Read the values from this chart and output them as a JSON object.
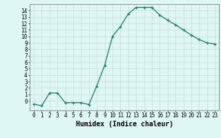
{
  "x": [
    0,
    1,
    2,
    3,
    4,
    5,
    6,
    7,
    8,
    9,
    10,
    11,
    12,
    13,
    14,
    15,
    16,
    17,
    18,
    19,
    20,
    21,
    22,
    23
  ],
  "y": [
    -0.5,
    -0.8,
    1.2,
    1.2,
    -0.3,
    -0.3,
    -0.3,
    -0.6,
    2.3,
    5.5,
    10.0,
    11.5,
    13.5,
    14.5,
    14.5,
    14.5,
    13.3,
    12.5,
    11.8,
    11.0,
    10.2,
    9.5,
    9.0,
    8.8
  ],
  "line_color": "#2e7d6e",
  "marker": "+",
  "markersize": 3,
  "markeredgewidth": 1.0,
  "linewidth": 1.0,
  "bg_color": "#dff7f4",
  "grid_color": "#c4dbd8",
  "xlabel": "Humidex (Indice chaleur)",
  "xlabel_fontsize": 7,
  "xlim": [
    -0.5,
    23.5
  ],
  "ylim": [
    -1.5,
    15.0
  ],
  "yticks": [
    0,
    1,
    2,
    3,
    4,
    5,
    6,
    7,
    8,
    9,
    10,
    11,
    12,
    13,
    14
  ],
  "xticks": [
    0,
    1,
    2,
    3,
    4,
    5,
    6,
    7,
    8,
    9,
    10,
    11,
    12,
    13,
    14,
    15,
    16,
    17,
    18,
    19,
    20,
    21,
    22,
    23
  ],
  "tick_fontsize": 5.5
}
